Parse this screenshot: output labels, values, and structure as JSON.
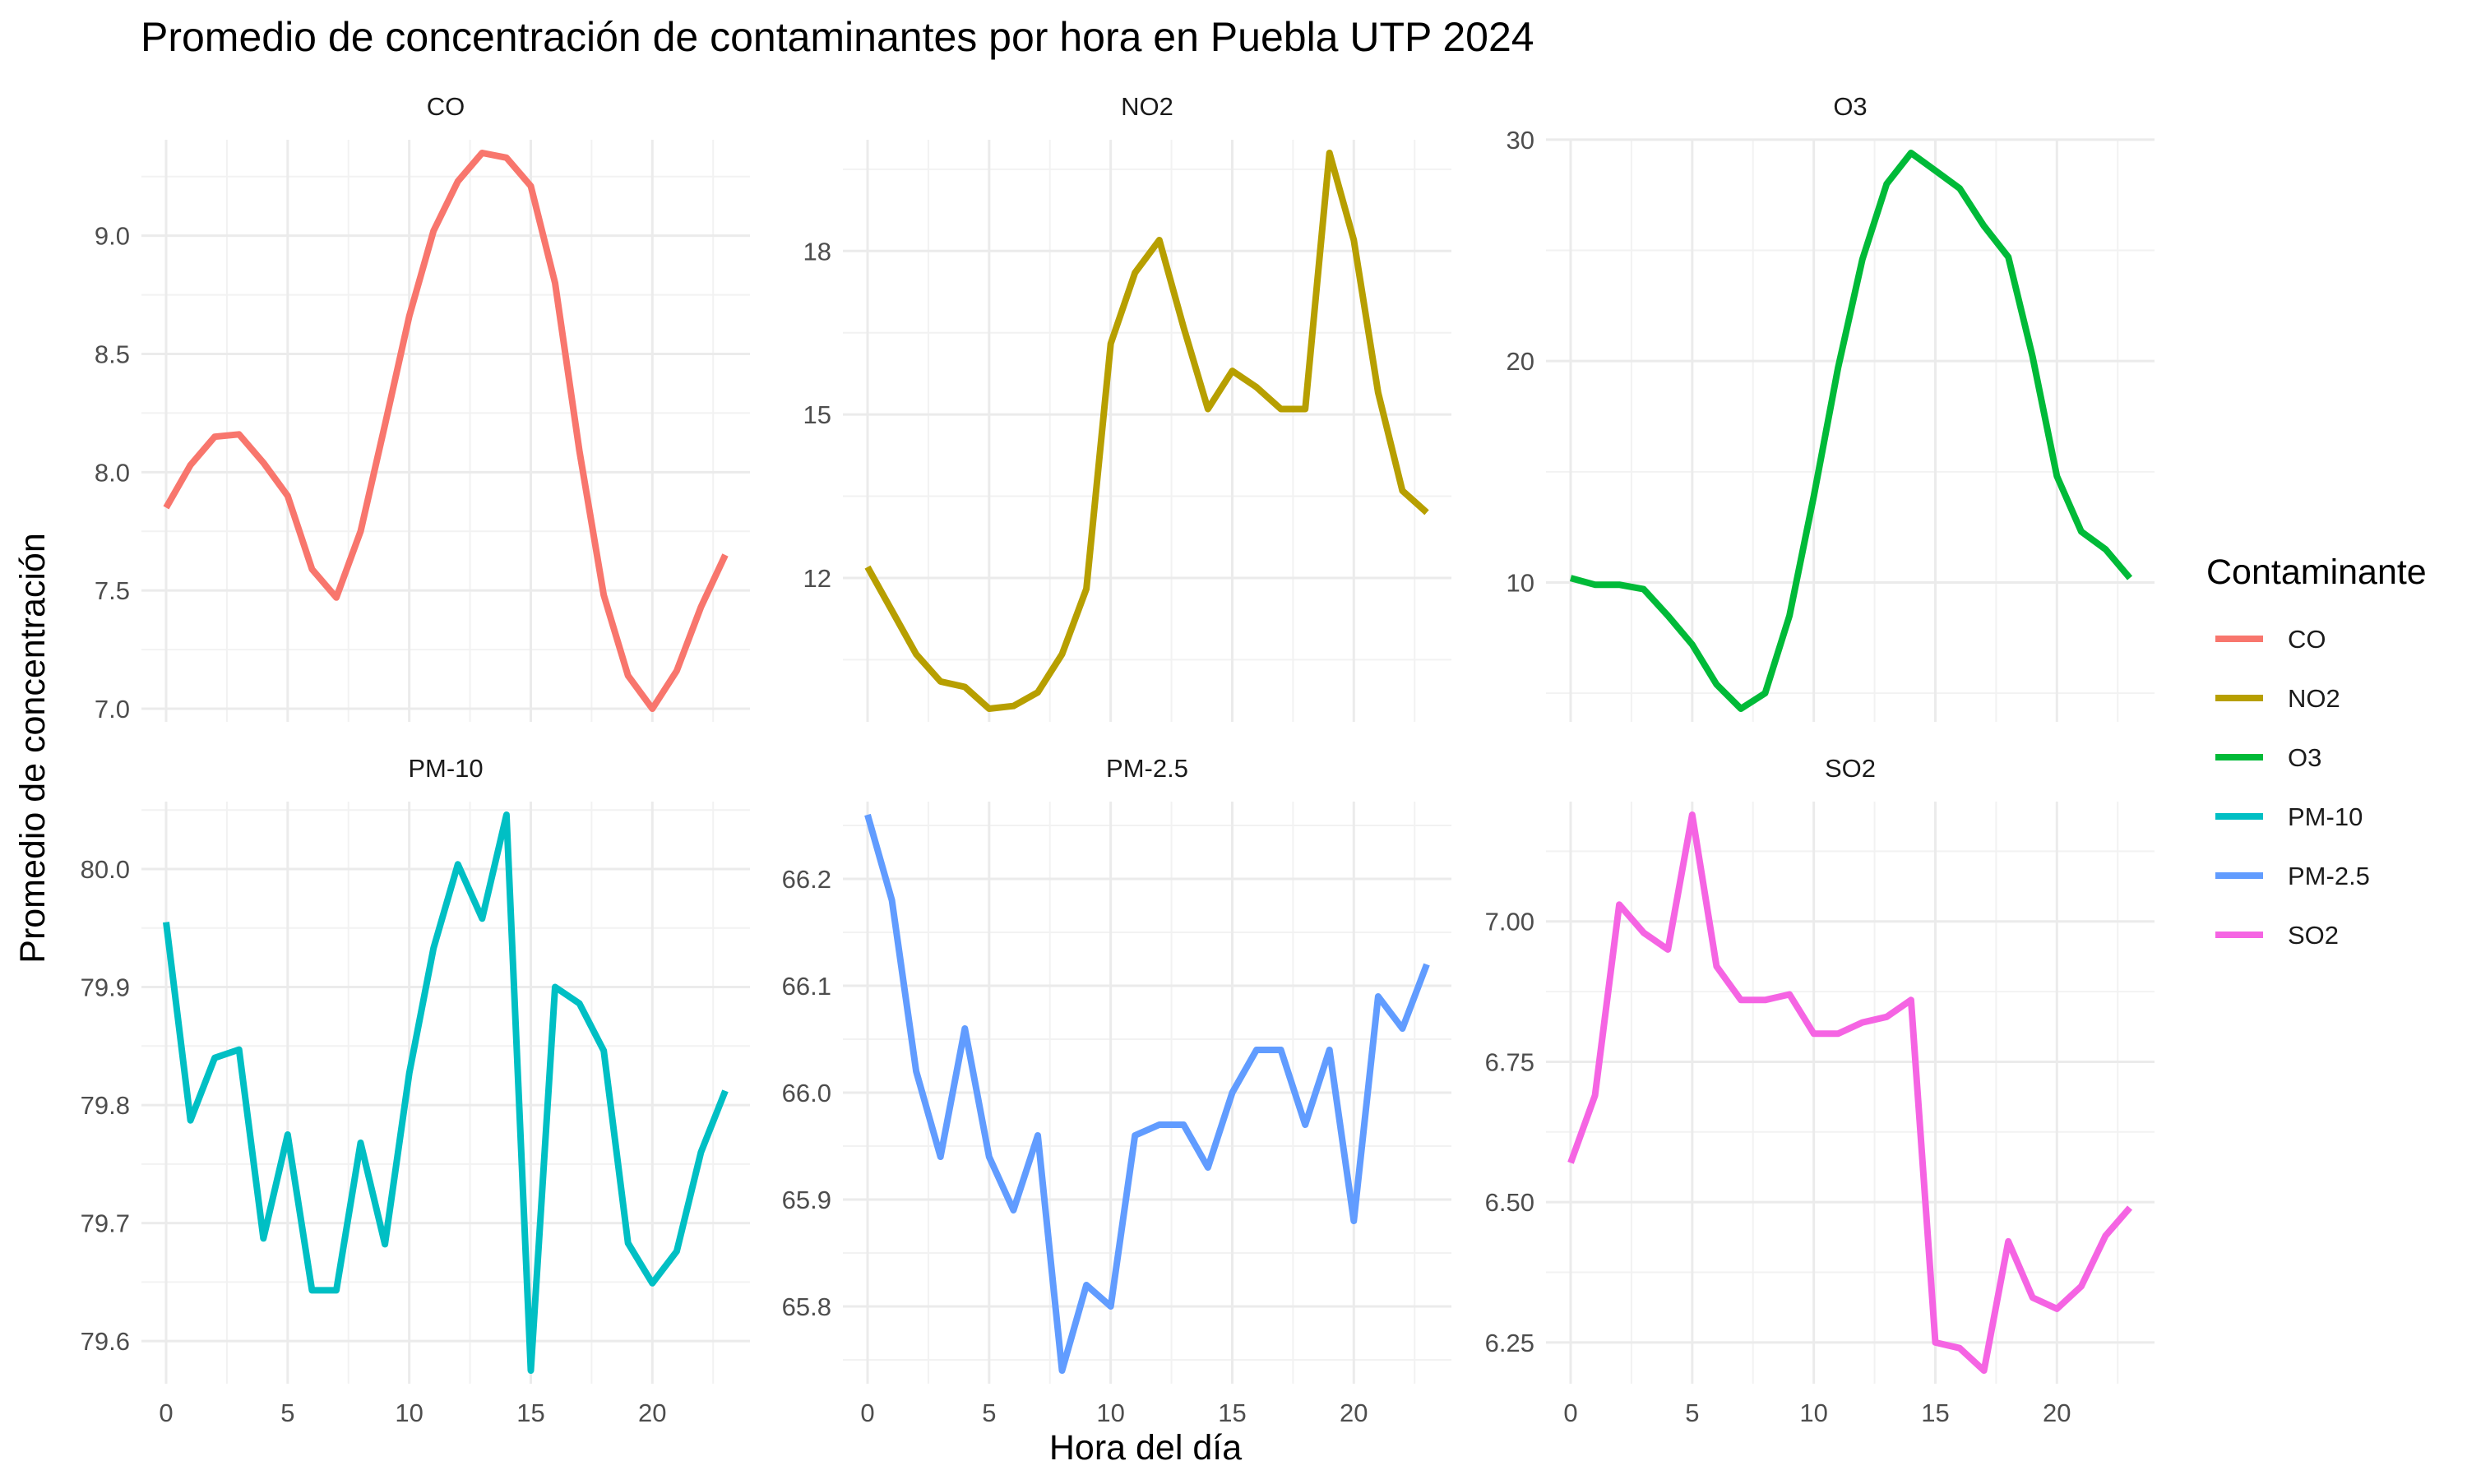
{
  "chart_data": {
    "type": "line",
    "title": "Promedio de concentración de contaminantes por hora en Puebla UTP 2024",
    "xlabel": "Hora del día",
    "ylabel": "Promedio de concentración",
    "legend": {
      "title": "Contaminante",
      "position": "right"
    },
    "grid": true,
    "x": [
      0,
      1,
      2,
      3,
      4,
      5,
      6,
      7,
      8,
      9,
      10,
      11,
      12,
      13,
      14,
      15,
      16,
      17,
      18,
      19,
      20,
      21,
      22,
      23
    ],
    "xlim": [
      0,
      23
    ],
    "xticks": [
      "0",
      "5",
      "10",
      "15",
      "20"
    ],
    "series": [
      {
        "name": "CO",
        "color": "#F8766D",
        "values": [
          7.85,
          8.03,
          8.15,
          8.16,
          8.04,
          7.9,
          7.59,
          7.47,
          7.75,
          8.2,
          8.66,
          9.02,
          9.23,
          9.35,
          9.33,
          9.21,
          8.8,
          8.09,
          7.48,
          7.14,
          7.0,
          7.16,
          7.43,
          7.65
        ],
        "ylim": [
          7.0,
          9.35
        ],
        "yticks": [
          "7.0",
          "7.5",
          "8.0",
          "8.5",
          "9.0"
        ]
      },
      {
        "name": "NO2",
        "color": "#B79F00",
        "values": [
          12.2,
          11.4,
          10.6,
          10.1,
          10.0,
          9.6,
          9.65,
          9.9,
          10.6,
          11.8,
          16.3,
          17.6,
          18.2,
          16.6,
          15.1,
          15.8,
          15.5,
          15.1,
          15.1,
          19.8,
          18.2,
          15.4,
          13.6,
          13.2
        ],
        "ylim": [
          9.6,
          19.8
        ],
        "yticks": [
          "12",
          "15",
          "18"
        ]
      },
      {
        "name": "O3",
        "color": "#00BA38",
        "values": [
          10.2,
          9.9,
          9.9,
          9.7,
          8.5,
          7.2,
          5.4,
          4.3,
          5.0,
          8.5,
          13.9,
          19.7,
          24.6,
          28.0,
          29.4,
          28.6,
          27.8,
          26.1,
          24.7,
          20.2,
          14.8,
          12.3,
          11.5,
          10.2
        ],
        "ylim": [
          4.3,
          29.4
        ],
        "yticks": [
          "10",
          "20",
          "30"
        ]
      },
      {
        "name": "PM-10",
        "color": "#00BFC4",
        "values": [
          79.955,
          79.787,
          79.84,
          79.847,
          79.687,
          79.775,
          79.643,
          79.643,
          79.768,
          79.682,
          79.827,
          79.933,
          80.004,
          79.958,
          80.046,
          79.575,
          79.9,
          79.886,
          79.846,
          79.683,
          79.649,
          79.676,
          79.76,
          79.812
        ],
        "ylim": [
          79.575,
          80.046
        ],
        "yticks": [
          "79.6",
          "79.7",
          "79.8",
          "79.9",
          "80.0"
        ]
      },
      {
        "name": "PM-2.5",
        "color": "#619CFF",
        "values": [
          66.26,
          66.18,
          66.02,
          65.94,
          66.06,
          65.94,
          65.89,
          65.96,
          65.74,
          65.82,
          65.8,
          65.96,
          65.97,
          65.97,
          65.93,
          66.0,
          66.04,
          66.04,
          65.97,
          66.04,
          65.88,
          66.09,
          66.06,
          66.12
        ],
        "ylim": [
          65.74,
          66.26
        ],
        "yticks": [
          "65.8",
          "65.9",
          "66.0",
          "66.1",
          "66.2"
        ]
      },
      {
        "name": "SO2",
        "color": "#F564E3",
        "values": [
          6.57,
          6.69,
          7.03,
          6.98,
          6.95,
          7.19,
          6.92,
          6.86,
          6.86,
          6.87,
          6.8,
          6.8,
          6.82,
          6.83,
          6.86,
          6.25,
          6.24,
          6.2,
          6.43,
          6.33,
          6.31,
          6.35,
          6.44,
          6.49
        ],
        "ylim": [
          6.2,
          7.19
        ],
        "yticks": [
          "6.25",
          "6.50",
          "6.75",
          "7.00"
        ]
      }
    ]
  }
}
